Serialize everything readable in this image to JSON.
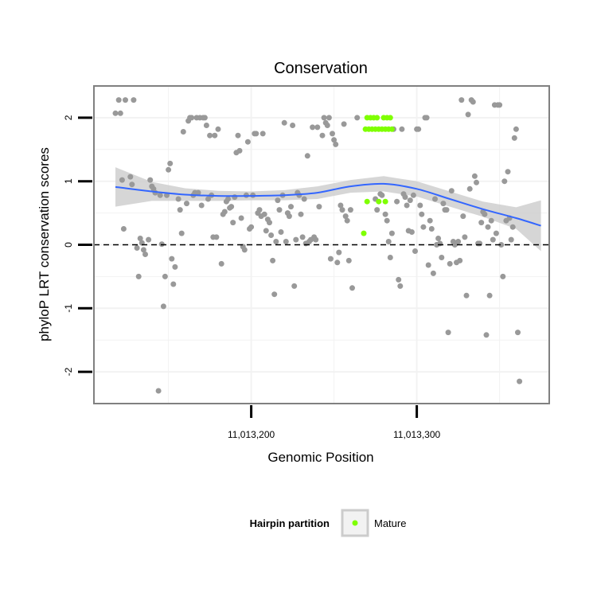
{
  "chart_data": {
    "type": "scatter",
    "title": "Conservation",
    "xlabel": "Genomic Position",
    "ylabel": "phyloP LRT conservation scores",
    "xlim": [
      11013105,
      11013380
    ],
    "ylim": [
      -2.5,
      2.5
    ],
    "xticks": [
      {
        "value": 11013200,
        "label": "11,013,200"
      },
      {
        "value": 11013300,
        "label": "11,013,300"
      }
    ],
    "yticks": [
      {
        "value": -2,
        "label": "-2"
      },
      {
        "value": -1,
        "label": "-1"
      },
      {
        "value": 0,
        "label": "0"
      },
      {
        "value": 1,
        "label": "1"
      },
      {
        "value": 2,
        "label": "2"
      }
    ],
    "grid": true,
    "reference_line": {
      "y": 0,
      "style": "dashed"
    },
    "colors": {
      "other": "#999999",
      "mature": "#7fff00",
      "smooth": "#3366ff",
      "band": "#cccccc",
      "grid": "#f2f2f2",
      "frame": "#808080"
    },
    "legend": {
      "title": "Hairpin partition",
      "placement": "bottom",
      "entries": [
        {
          "label": "Mature",
          "color": "#7fff00"
        }
      ]
    },
    "series": [
      {
        "role": "other",
        "points": [
          [
            11013118,
            2.07
          ],
          [
            11013120,
            2.28
          ],
          [
            11013121,
            2.07
          ],
          [
            11013122,
            1.02
          ],
          [
            11013124,
            2.28
          ],
          [
            11013127,
            1.07
          ],
          [
            11013128,
            0.95
          ],
          [
            11013129,
            2.28
          ],
          [
            11013123,
            0.25
          ],
          [
            11013131,
            -0.05
          ],
          [
            11013132,
            -0.5
          ],
          [
            11013133,
            0.1
          ],
          [
            11013134,
            0.03
          ],
          [
            11013135,
            -0.08
          ],
          [
            11013136,
            -0.15
          ],
          [
            11013138,
            0.08
          ],
          [
            11013139,
            1.02
          ],
          [
            11013140,
            0.92
          ],
          [
            11013141,
            0.88
          ],
          [
            11013142,
            0.82
          ],
          [
            11013145,
            0.78
          ],
          [
            11013146,
            0.01
          ],
          [
            11013147,
            -0.97
          ],
          [
            11013148,
            -0.5
          ],
          [
            11013149,
            0.78
          ],
          [
            11013150,
            1.18
          ],
          [
            11013151,
            1.28
          ],
          [
            11013152,
            -0.22
          ],
          [
            11013153,
            -0.62
          ],
          [
            11013154,
            -0.35
          ],
          [
            11013144,
            -2.3
          ],
          [
            11013156,
            0.72
          ],
          [
            11013157,
            0.55
          ],
          [
            11013158,
            0.18
          ],
          [
            11013159,
            1.78
          ],
          [
            11013161,
            0.65
          ],
          [
            11013162,
            1.95
          ],
          [
            11013163,
            2.0
          ],
          [
            11013164,
            2.0
          ],
          [
            11013165,
            0.78
          ],
          [
            11013166,
            0.82
          ],
          [
            11013167,
            2.0
          ],
          [
            11013168,
            0.82
          ],
          [
            11013169,
            2.0
          ],
          [
            11013170,
            0.62
          ],
          [
            11013171,
            2.0
          ],
          [
            11013172,
            2.0
          ],
          [
            11013173,
            1.88
          ],
          [
            11013174,
            0.72
          ],
          [
            11013175,
            1.72
          ],
          [
            11013176,
            0.78
          ],
          [
            11013177,
            0.12
          ],
          [
            11013178,
            1.72
          ],
          [
            11013179,
            0.12
          ],
          [
            11013180,
            1.82
          ],
          [
            11013182,
            -0.3
          ],
          [
            11013183,
            0.48
          ],
          [
            11013184,
            0.52
          ],
          [
            11013185,
            0.68
          ],
          [
            11013186,
            0.72
          ],
          [
            11013187,
            0.58
          ],
          [
            11013188,
            0.6
          ],
          [
            11013189,
            0.35
          ],
          [
            11013190,
            0.75
          ],
          [
            11013191,
            1.45
          ],
          [
            11013192,
            1.72
          ],
          [
            11013193,
            1.48
          ],
          [
            11013194,
            0.42
          ],
          [
            11013195,
            -0.03
          ],
          [
            11013196,
            -0.08
          ],
          [
            11013197,
            0.78
          ],
          [
            11013198,
            1.62
          ],
          [
            11013199,
            0.25
          ],
          [
            11013200,
            0.28
          ],
          [
            11013201,
            0.78
          ],
          [
            11013202,
            1.75
          ],
          [
            11013203,
            1.75
          ],
          [
            11013204,
            0.5
          ],
          [
            11013205,
            0.55
          ],
          [
            11013206,
            0.45
          ],
          [
            11013207,
            1.75
          ],
          [
            11013208,
            0.48
          ],
          [
            11013209,
            0.22
          ],
          [
            11013210,
            0.4
          ],
          [
            11013211,
            0.35
          ],
          [
            11013212,
            0.15
          ],
          [
            11013213,
            -0.25
          ],
          [
            11013214,
            -0.78
          ],
          [
            11013215,
            0.05
          ],
          [
            11013216,
            0.7
          ],
          [
            11013217,
            0.55
          ],
          [
            11013218,
            0.2
          ],
          [
            11013219,
            0.78
          ],
          [
            11013220,
            1.92
          ],
          [
            11013221,
            0.05
          ],
          [
            11013222,
            0.5
          ],
          [
            11013223,
            0.45
          ],
          [
            11013224,
            0.6
          ],
          [
            11013225,
            1.88
          ],
          [
            11013226,
            -0.65
          ],
          [
            11013227,
            0.08
          ],
          [
            11013228,
            0.82
          ],
          [
            11013229,
            0.78
          ],
          [
            11013230,
            0.48
          ],
          [
            11013231,
            0.12
          ],
          [
            11013232,
            0.72
          ],
          [
            11013233,
            0.02
          ],
          [
            11013234,
            1.4
          ],
          [
            11013235,
            0.05
          ],
          [
            11013236,
            0.08
          ],
          [
            11013237,
            1.85
          ],
          [
            11013238,
            0.12
          ],
          [
            11013239,
            0.08
          ],
          [
            11013240,
            1.85
          ],
          [
            11013241,
            0.6
          ],
          [
            11013243,
            1.72
          ],
          [
            11013244,
            2.0
          ],
          [
            11013245,
            1.92
          ],
          [
            11013246,
            1.88
          ],
          [
            11013247,
            2.0
          ],
          [
            11013248,
            -0.22
          ],
          [
            11013249,
            1.75
          ],
          [
            11013250,
            1.65
          ],
          [
            11013251,
            1.58
          ],
          [
            11013252,
            -0.28
          ],
          [
            11013253,
            -0.12
          ],
          [
            11013254,
            0.62
          ],
          [
            11013255,
            0.55
          ],
          [
            11013256,
            1.9
          ],
          [
            11013257,
            0.45
          ],
          [
            11013258,
            0.38
          ],
          [
            11013259,
            -0.25
          ],
          [
            11013260,
            0.55
          ],
          [
            11013261,
            -0.68
          ],
          [
            11013264,
            2.0
          ],
          [
            11013275,
            0.72
          ],
          [
            11013276,
            0.55
          ],
          [
            11013278,
            0.8
          ],
          [
            11013279,
            0.78
          ],
          [
            11013281,
            0.48
          ],
          [
            11013282,
            0.38
          ],
          [
            11013283,
            0.05
          ],
          [
            11013284,
            -0.2
          ],
          [
            11013285,
            0.18
          ],
          [
            11013286,
            1.82
          ],
          [
            11013288,
            0.68
          ],
          [
            11013289,
            -0.55
          ],
          [
            11013290,
            -0.65
          ],
          [
            11013291,
            1.82
          ],
          [
            11013292,
            0.8
          ],
          [
            11013293,
            0.75
          ],
          [
            11013294,
            0.62
          ],
          [
            11013295,
            0.22
          ],
          [
            11013296,
            0.7
          ],
          [
            11013297,
            0.2
          ],
          [
            11013298,
            0.78
          ],
          [
            11013299,
            -0.1
          ],
          [
            11013300,
            1.82
          ],
          [
            11013301,
            1.82
          ],
          [
            11013302,
            0.62
          ],
          [
            11013303,
            0.48
          ],
          [
            11013304,
            0.28
          ],
          [
            11013305,
            2.0
          ],
          [
            11013306,
            2.0
          ],
          [
            11013307,
            -0.32
          ],
          [
            11013308,
            0.38
          ],
          [
            11013309,
            0.25
          ],
          [
            11013310,
            -0.45
          ],
          [
            11013311,
            0.72
          ],
          [
            11013312,
            0.0
          ],
          [
            11013313,
            0.1
          ],
          [
            11013314,
            0.02
          ],
          [
            11013315,
            -0.2
          ],
          [
            11013316,
            0.65
          ],
          [
            11013317,
            0.55
          ],
          [
            11013318,
            0.55
          ],
          [
            11013319,
            -1.38
          ],
          [
            11013320,
            -0.3
          ],
          [
            11013321,
            0.85
          ],
          [
            11013322,
            0.05
          ],
          [
            11013323,
            0.0
          ],
          [
            11013324,
            -0.28
          ],
          [
            11013325,
            0.05
          ],
          [
            11013326,
            -0.25
          ],
          [
            11013327,
            2.28
          ],
          [
            11013328,
            0.45
          ],
          [
            11013329,
            0.12
          ],
          [
            11013330,
            -0.8
          ],
          [
            11013331,
            2.05
          ],
          [
            11013332,
            0.88
          ],
          [
            11013333,
            2.28
          ],
          [
            11013334,
            2.25
          ],
          [
            11013335,
            1.08
          ],
          [
            11013336,
            0.98
          ],
          [
            11013337,
            0.02
          ],
          [
            11013338,
            0.02
          ],
          [
            11013339,
            0.35
          ],
          [
            11013340,
            0.52
          ],
          [
            11013341,
            0.48
          ],
          [
            11013342,
            -1.42
          ],
          [
            11013343,
            0.28
          ],
          [
            11013344,
            -0.8
          ],
          [
            11013345,
            0.38
          ],
          [
            11013346,
            0.08
          ],
          [
            11013347,
            2.2
          ],
          [
            11013348,
            0.18
          ],
          [
            11013349,
            2.2
          ],
          [
            11013350,
            2.2
          ],
          [
            11013351,
            0.0
          ],
          [
            11013352,
            -0.5
          ],
          [
            11013353,
            1.0
          ],
          [
            11013354,
            0.38
          ],
          [
            11013355,
            1.15
          ],
          [
            11013356,
            0.42
          ],
          [
            11013357,
            0.08
          ],
          [
            11013358,
            0.28
          ],
          [
            11013359,
            1.68
          ],
          [
            11013360,
            1.82
          ],
          [
            11013361,
            -1.38
          ],
          [
            11013362,
            -2.15
          ]
        ]
      },
      {
        "name": "Mature",
        "role": "mature",
        "points": [
          [
            11013268,
            0.18
          ],
          [
            11013270,
            0.68
          ],
          [
            11013277,
            0.68
          ],
          [
            11013281,
            0.68
          ],
          [
            11013269,
            1.82
          ],
          [
            11013271,
            1.82
          ],
          [
            11013273,
            1.82
          ],
          [
            11013275,
            1.82
          ],
          [
            11013277,
            1.82
          ],
          [
            11013279,
            1.82
          ],
          [
            11013281,
            1.82
          ],
          [
            11013283,
            1.82
          ],
          [
            11013285,
            1.82
          ],
          [
            11013270,
            2.0
          ],
          [
            11013272,
            2.0
          ],
          [
            11013274,
            2.0
          ],
          [
            11013276,
            2.0
          ],
          [
            11013280,
            2.0
          ],
          [
            11013282,
            2.0
          ],
          [
            11013284,
            2.0
          ]
        ]
      }
    ],
    "smooth": {
      "x": [
        11013118,
        11013140,
        11013160,
        11013180,
        11013200,
        11013220,
        11013240,
        11013260,
        11013280,
        11013300,
        11013320,
        11013340,
        11013360,
        11013375
      ],
      "y": [
        0.91,
        0.84,
        0.79,
        0.77,
        0.77,
        0.78,
        0.82,
        0.92,
        0.96,
        0.88,
        0.72,
        0.56,
        0.42,
        0.3
      ],
      "lower": [
        0.6,
        0.69,
        0.69,
        0.69,
        0.7,
        0.7,
        0.72,
        0.82,
        0.84,
        0.76,
        0.6,
        0.44,
        0.25,
        -0.1
      ],
      "upper": [
        1.22,
        0.99,
        0.89,
        0.85,
        0.84,
        0.86,
        0.92,
        1.02,
        1.08,
        1.0,
        0.84,
        0.68,
        0.59,
        0.7
      ]
    }
  }
}
